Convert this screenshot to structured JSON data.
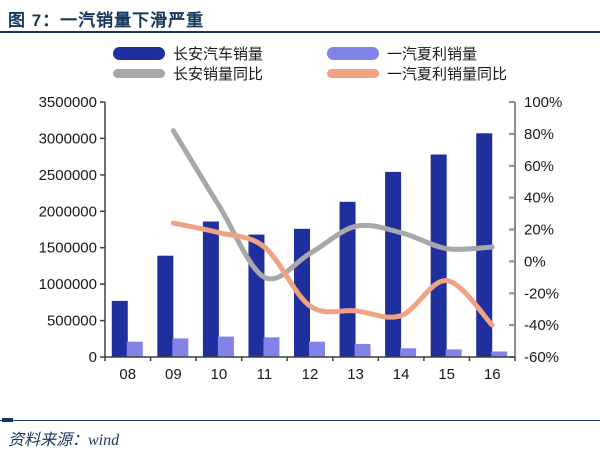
{
  "header": {
    "title": "图 7：一汽销量下滑严重"
  },
  "source": {
    "label": "资料来源：wind"
  },
  "colors": {
    "accent_navy": "#17375D",
    "bar_dark_blue": "#1F2F9E",
    "bar_light_purple": "#8183E6",
    "line_gray": "#A8A8A8",
    "line_orange": "#F0A285",
    "axis_dark": "#404040",
    "axis_right_gray": "#8C8C8C",
    "tick_text": "#1a1a1a"
  },
  "legend": [
    {
      "label": "长安汽车销量",
      "color": "#1F2F9E",
      "type": "bar"
    },
    {
      "label": "一汽夏利销量",
      "color": "#8183E6",
      "type": "bar"
    },
    {
      "label": "长安销量同比",
      "color": "#A8A8A8",
      "type": "line"
    },
    {
      "label": "一汽夏利销量同比",
      "color": "#F0A285",
      "type": "line"
    }
  ],
  "chart_data": {
    "type": "bar",
    "subtype": "bar-line-combo",
    "title": "图 7：一汽销量下滑严重",
    "categories": [
      "08",
      "09",
      "10",
      "11",
      "12",
      "13",
      "14",
      "15",
      "16"
    ],
    "series": [
      {
        "name": "长安汽车销量",
        "type": "bar",
        "axis": "left",
        "color": "#1F2F9E",
        "values": [
          770000,
          1390000,
          1860000,
          1680000,
          1760000,
          2130000,
          2540000,
          2780000,
          3070000
        ]
      },
      {
        "name": "一汽夏利销量",
        "type": "bar",
        "axis": "left",
        "color": "#8183E6",
        "values": [
          210000,
          255000,
          280000,
          270000,
          210000,
          180000,
          120000,
          105000,
          75000
        ]
      },
      {
        "name": "长安销量同比",
        "type": "line",
        "axis": "right",
        "color": "#A8A8A8",
        "values": [
          null,
          82,
          35,
          -10,
          5,
          22,
          18,
          8,
          9
        ]
      },
      {
        "name": "一汽夏利销量同比",
        "type": "line",
        "axis": "right",
        "color": "#F0A285",
        "values": [
          null,
          24,
          18,
          9,
          -28,
          -31,
          -34,
          -12,
          -40
        ]
      }
    ],
    "left_axis": {
      "min": 0,
      "max": 3500000,
      "step": 500000,
      "tick_labels": [
        "0",
        "500000",
        "1000000",
        "1500000",
        "2000000",
        "2500000",
        "3000000",
        "3500000"
      ]
    },
    "right_axis": {
      "min": -60,
      "max": 100,
      "step": 20,
      "tick_labels": [
        "-60%",
        "-40%",
        "-20%",
        "0%",
        "20%",
        "40%",
        "60%",
        "80%",
        "100%"
      ]
    },
    "grid": false,
    "legend_position": "top",
    "smoothed_lines": true
  }
}
